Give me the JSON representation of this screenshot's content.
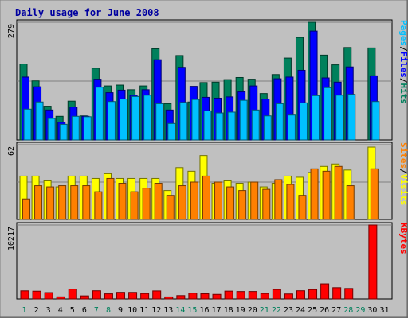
{
  "chart_data": {
    "type": "bar",
    "title": "Daily usage for June 2008",
    "days": [
      "1",
      "2",
      "3",
      "4",
      "5",
      "6",
      "7",
      "8",
      "9",
      "10",
      "11",
      "12",
      "13",
      "14",
      "15",
      "16",
      "17",
      "18",
      "19",
      "20",
      "21",
      "22",
      "23",
      "24",
      "25",
      "26",
      "27",
      "28",
      "29",
      "30",
      "31"
    ],
    "weekend_days": [
      "1",
      "7",
      "8",
      "14",
      "15",
      "21",
      "22",
      "28",
      "29"
    ],
    "panels": [
      {
        "scale_label": "279",
        "ymax": 279,
        "side_labels": [
          "Pages",
          "/",
          "Files",
          "/",
          "Hits"
        ],
        "series": [
          {
            "name": "Hits",
            "color": "#00805c",
            "values": [
              180,
              140,
              80,
              56,
              92,
              57,
              170,
              128,
              130,
              119,
              128,
              216,
              86,
              200,
              90,
              136,
              137,
              143,
              148,
              144,
              110,
              155,
              194,
              243,
              279,
              201,
              178,
              219,
              0,
              218,
              0
            ]
          },
          {
            "name": "Files",
            "color": "#0000ff",
            "values": [
              149,
              126,
              71,
              42,
              78,
              56,
              144,
              112,
              118,
              106,
              119,
              190,
              71,
              172,
              127,
              101,
              99,
              102,
              114,
              128,
              97,
              145,
              149,
              165,
              258,
              147,
              137,
              173,
              0,
              152,
              0
            ]
          },
          {
            "name": "Pages",
            "color": "#00c0ff",
            "values": [
              73,
              90,
              51,
              37,
              56,
              55,
              125,
              91,
              97,
              103,
              106,
              86,
              39,
              89,
              96,
              69,
              64,
              66,
              94,
              71,
              57,
              86,
              59,
              88,
              105,
              124,
              106,
              108,
              0,
              91,
              0
            ]
          }
        ]
      },
      {
        "scale_label": "62",
        "ymax": 62,
        "side_labels": [
          "Sites",
          "/",
          "Visits"
        ],
        "series": [
          {
            "name": "Visits",
            "color": "#ffff00",
            "values": [
              36,
              36,
              32,
              27,
              36,
              36,
              34,
              38,
              34,
              34,
              34,
              34,
              24,
              43,
              40,
              53,
              30,
              32,
              30,
              31,
              27,
              30,
              36,
              35,
              39,
              44,
              46,
              41,
              0,
              60,
              0
            ]
          },
          {
            "name": "Sites",
            "color": "#ff8000",
            "values": [
              17,
              28,
              27,
              28,
              28,
              28,
              23,
              34,
              30,
              23,
              26,
              30,
              20,
              28,
              31,
              36,
              31,
              27,
              24,
              31,
              25,
              33,
              29,
              20,
              42,
              40,
              44,
              28,
              0,
              42,
              0
            ]
          }
        ]
      },
      {
        "scale_label": "10217",
        "ymax": 10217,
        "side_labels": [
          "KBytes"
        ],
        "series": [
          {
            "name": "KBytes",
            "color": "#ff0000",
            "values": [
              1121,
              1072,
              876,
              291,
              1363,
              423,
              1130,
              705,
              914,
              906,
              746,
              1110,
              282,
              461,
              800,
              717,
              631,
              1082,
              1026,
              1030,
              754,
              1305,
              688,
              1133,
              1293,
              2083,
              1557,
              1447,
              0,
              10217,
              0
            ]
          }
        ]
      }
    ]
  }
}
